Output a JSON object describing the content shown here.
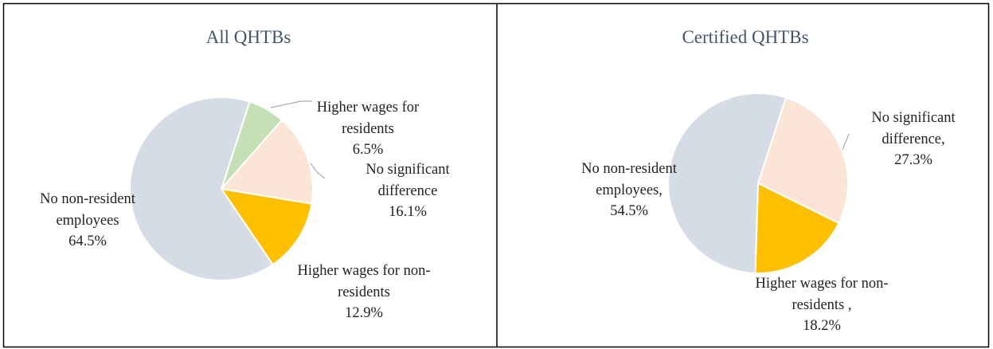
{
  "chart_data": [
    {
      "type": "pie",
      "title": "All QHTBs",
      "categories": [
        "Higher wages for residents",
        "No significant difference",
        "Higher wages for non-residents",
        "No non-resident employees"
      ],
      "values": [
        6.5,
        16.1,
        12.9,
        64.5
      ],
      "value_labels": [
        "6.5%",
        "16.1%",
        "12.9%",
        "64.5%"
      ],
      "colors": [
        "#c5e0b4",
        "#fbe5d6",
        "#ffc000",
        "#d6dce5"
      ]
    },
    {
      "type": "pie",
      "title": "Certified QHTBs",
      "categories": [
        "No significant difference,",
        "Higher wages for non-residents ,",
        "No non-resident employees,"
      ],
      "values": [
        27.3,
        18.2,
        54.5
      ],
      "value_labels": [
        "27.3%",
        "18.2%",
        "54.5%"
      ],
      "colors": [
        "#fbe5d6",
        "#ffc000",
        "#d6dce5"
      ]
    }
  ]
}
